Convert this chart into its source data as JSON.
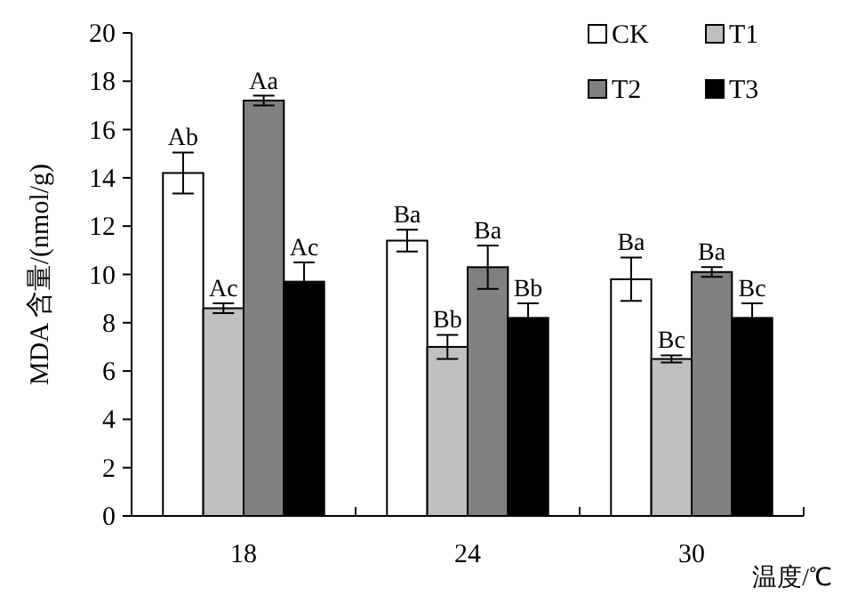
{
  "chart_data": {
    "type": "bar",
    "xlabel": "温度/℃",
    "ylabel": "MDA 含量/(nmol/g)",
    "categories": [
      "18",
      "24",
      "30"
    ],
    "series": [
      {
        "name": "CK",
        "color": "#ffffff",
        "values": [
          14.2,
          11.4,
          9.8
        ],
        "errors": [
          0.85,
          0.45,
          0.9
        ],
        "value_labels": [
          "Ab",
          "Ba",
          "Ba"
        ]
      },
      {
        "name": "T1",
        "color": "#c0c0c0",
        "values": [
          8.6,
          7.0,
          6.5
        ],
        "errors": [
          0.2,
          0.5,
          0.15
        ],
        "value_labels": [
          "Ac",
          "Bb",
          "Bc"
        ]
      },
      {
        "name": "T2",
        "color": "#808080",
        "values": [
          17.2,
          10.3,
          10.1
        ],
        "errors": [
          0.2,
          0.9,
          0.2
        ],
        "value_labels": [
          "Aa",
          "Ba",
          "Ba"
        ]
      },
      {
        "name": "T3",
        "color": "#000000",
        "values": [
          9.7,
          8.2,
          8.2
        ],
        "errors": [
          0.8,
          0.6,
          0.6
        ],
        "value_labels": [
          "Ac",
          "Bb",
          "Bc"
        ]
      }
    ],
    "ylim": [
      0,
      20
    ],
    "yticks": [
      0,
      2,
      4,
      6,
      8,
      10,
      12,
      14,
      16,
      18,
      20
    ],
    "legend": "top right"
  }
}
